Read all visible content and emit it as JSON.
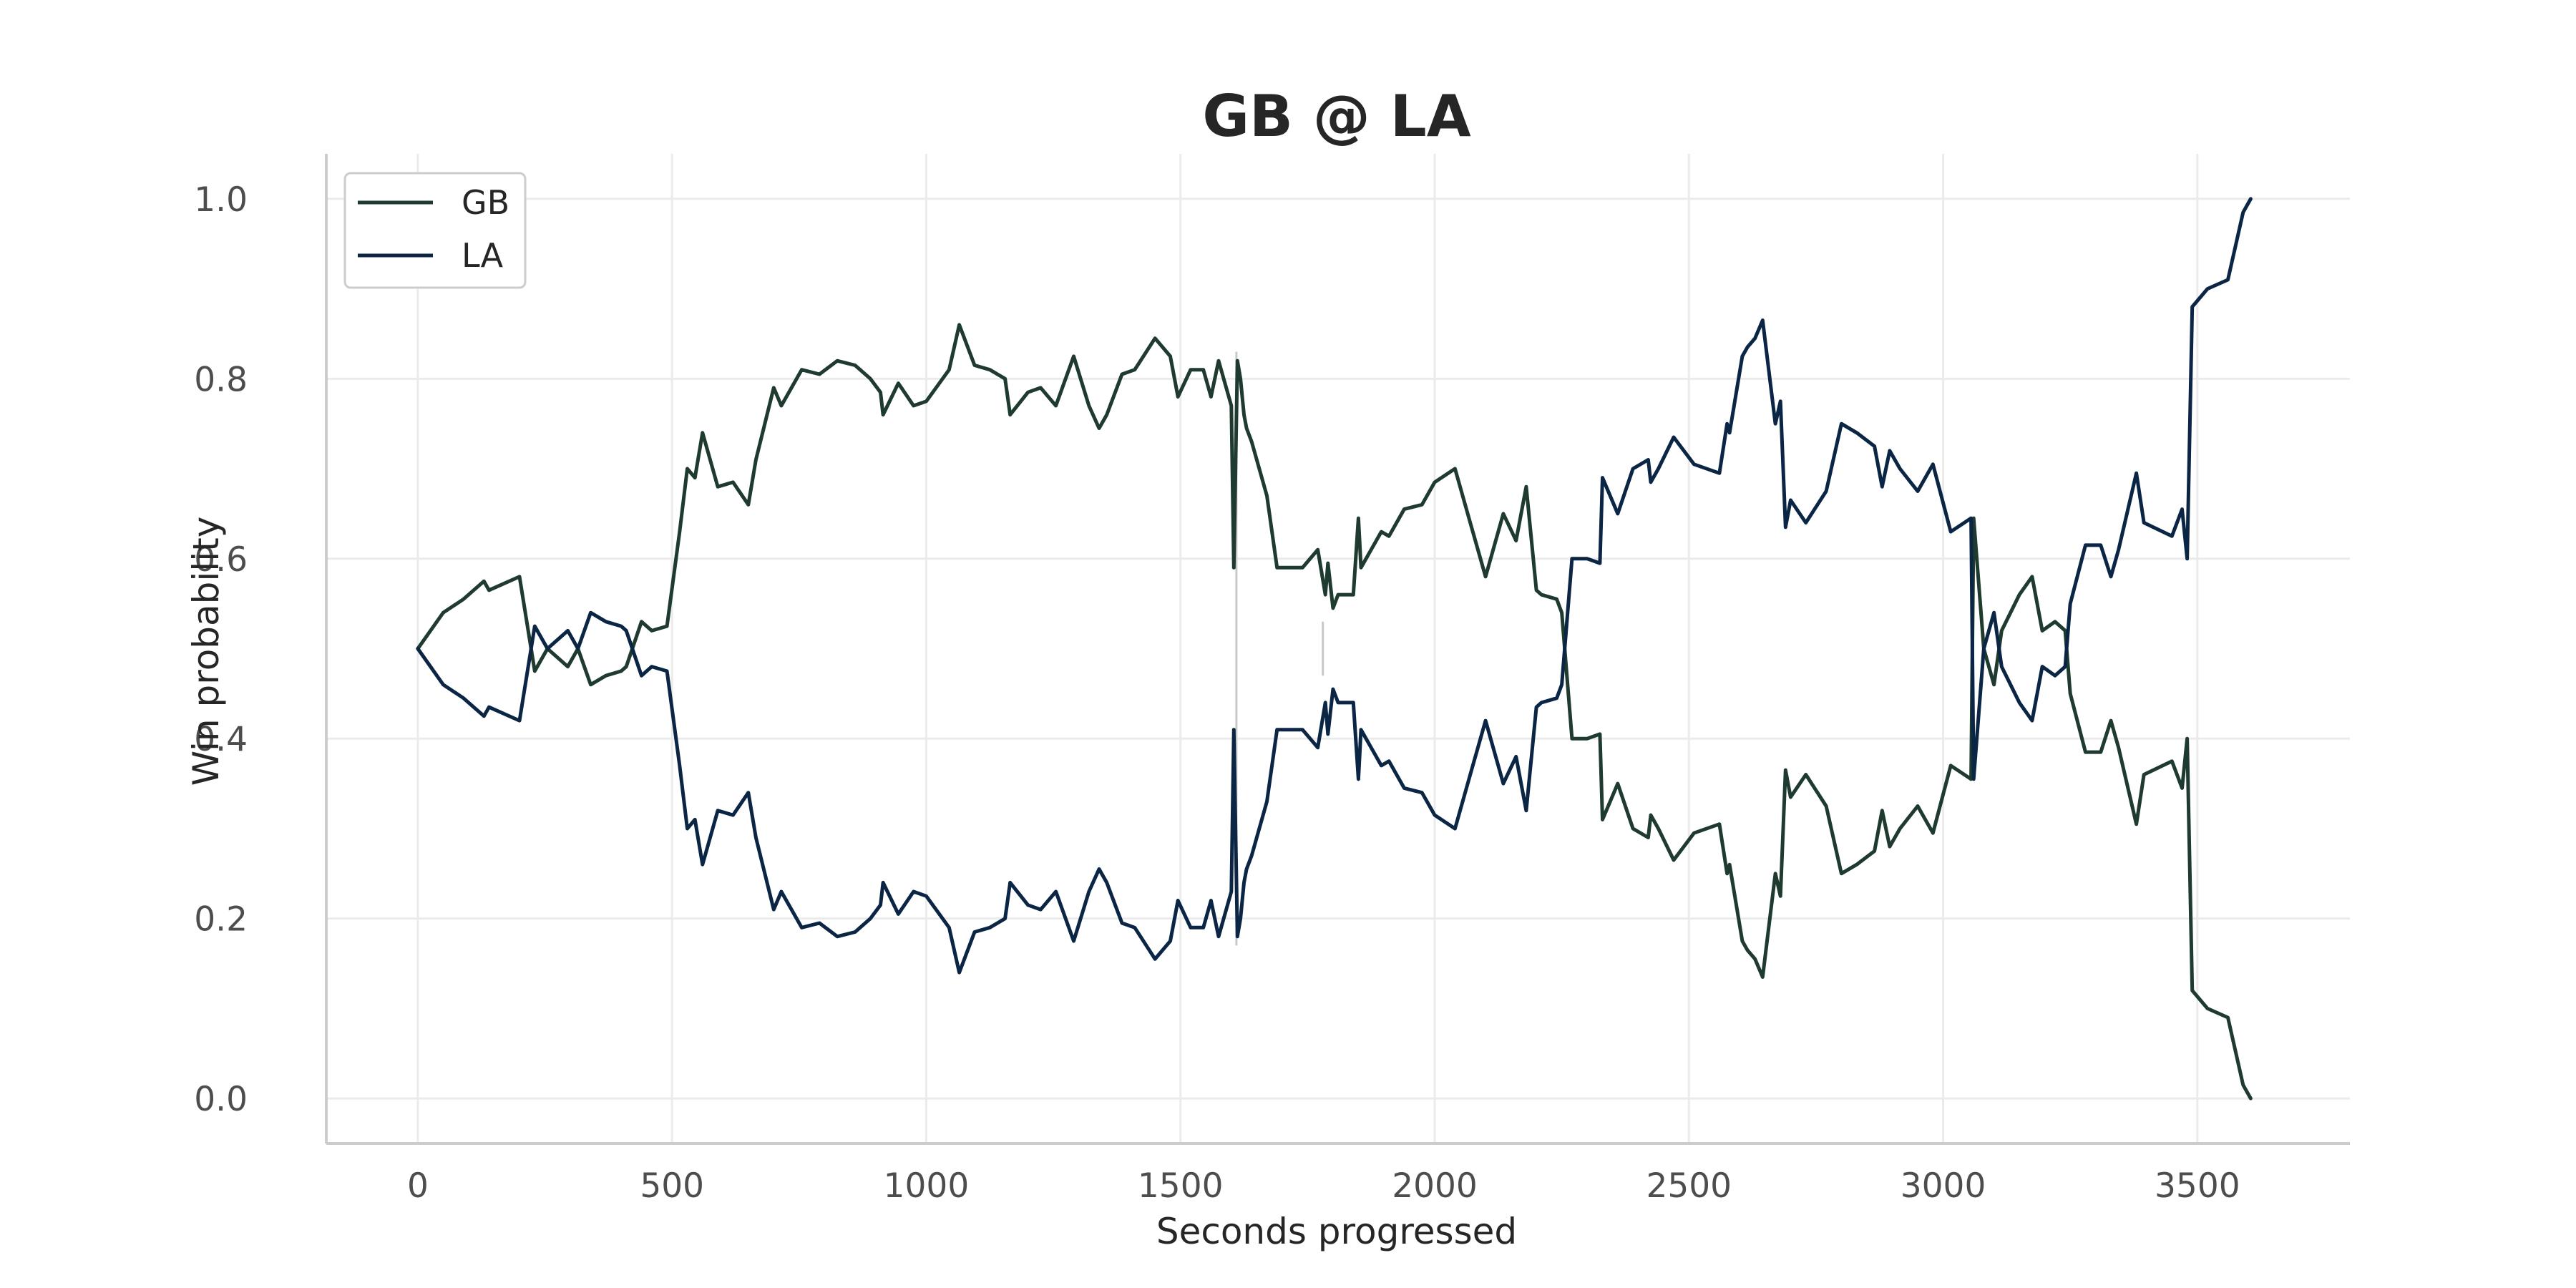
{
  "chart_data": {
    "type": "line",
    "title": "GB @ LA",
    "xlabel": "Seconds progressed",
    "ylabel": "Win probability",
    "xlim": [
      -180,
      3800
    ],
    "ylim": [
      -0.05,
      1.05
    ],
    "xticks": [
      0,
      500,
      1000,
      1500,
      2000,
      2500,
      3000,
      3500
    ],
    "yticks": [
      0.0,
      0.2,
      0.4,
      0.6,
      0.8,
      1.0
    ],
    "grid": true,
    "legend_position": "top-left",
    "vlines": [
      {
        "x": 1610,
        "y": [
          0.17,
          0.83
        ]
      },
      {
        "x": 1780,
        "y": [
          0.53,
          0.47
        ]
      }
    ],
    "series": [
      {
        "name": "GB",
        "color": "#1f3a2e",
        "x": [
          0,
          50,
          90,
          130,
          140,
          200,
          230,
          255,
          295,
          315,
          340,
          370,
          400,
          410,
          440,
          460,
          490,
          515,
          530,
          545,
          560,
          590,
          620,
          650,
          665,
          700,
          715,
          755,
          790,
          825,
          860,
          890,
          910,
          915,
          945,
          975,
          1000,
          1045,
          1065,
          1095,
          1125,
          1155,
          1165,
          1200,
          1225,
          1255,
          1290,
          1320,
          1340,
          1355,
          1385,
          1410,
          1450,
          1480,
          1495,
          1520,
          1545,
          1560,
          1575,
          1600,
          1605,
          1612,
          1618,
          1625,
          1630,
          1640,
          1670,
          1690,
          1740,
          1770,
          1785,
          1790,
          1800,
          1810,
          1840,
          1850,
          1855,
          1875,
          1895,
          1910,
          1940,
          1975,
          2000,
          2040,
          2070,
          2100,
          2135,
          2160,
          2180,
          2200,
          2210,
          2240,
          2250,
          2270,
          2300,
          2325,
          2330,
          2360,
          2390,
          2420,
          2425,
          2440,
          2470,
          2510,
          2560,
          2575,
          2580,
          2605,
          2615,
          2630,
          2645,
          2670,
          2680,
          2690,
          2700,
          2730,
          2770,
          2800,
          2830,
          2865,
          2880,
          2895,
          2915,
          2950,
          2980,
          3015,
          3055,
          3060,
          3080,
          3100,
          3115,
          3150,
          3175,
          3195,
          3220,
          3240,
          3250,
          3280,
          3310,
          3330,
          3345,
          3380,
          3395,
          3450,
          3470,
          3480,
          3490,
          3520,
          3560,
          3590,
          3605
        ],
        "y": [
          0.5,
          0.54,
          0.555,
          0.575,
          0.565,
          0.58,
          0.475,
          0.5,
          0.48,
          0.5,
          0.46,
          0.47,
          0.475,
          0.48,
          0.53,
          0.52,
          0.525,
          0.63,
          0.7,
          0.69,
          0.74,
          0.68,
          0.685,
          0.66,
          0.71,
          0.79,
          0.77,
          0.81,
          0.805,
          0.82,
          0.815,
          0.8,
          0.785,
          0.76,
          0.795,
          0.77,
          0.775,
          0.81,
          0.86,
          0.815,
          0.81,
          0.8,
          0.76,
          0.785,
          0.79,
          0.77,
          0.825,
          0.77,
          0.745,
          0.76,
          0.805,
          0.81,
          0.845,
          0.825,
          0.78,
          0.81,
          0.81,
          0.78,
          0.82,
          0.77,
          0.59,
          0.82,
          0.8,
          0.76,
          0.745,
          0.73,
          0.67,
          0.59,
          0.59,
          0.61,
          0.56,
          0.595,
          0.545,
          0.56,
          0.56,
          0.645,
          0.59,
          0.61,
          0.63,
          0.625,
          0.655,
          0.66,
          0.685,
          0.7,
          0.64,
          0.58,
          0.65,
          0.62,
          0.68,
          0.565,
          0.56,
          0.555,
          0.54,
          0.4,
          0.4,
          0.405,
          0.31,
          0.35,
          0.3,
          0.29,
          0.315,
          0.3,
          0.265,
          0.295,
          0.305,
          0.25,
          0.26,
          0.175,
          0.165,
          0.155,
          0.135,
          0.25,
          0.225,
          0.365,
          0.335,
          0.36,
          0.325,
          0.25,
          0.26,
          0.275,
          0.32,
          0.28,
          0.3,
          0.325,
          0.295,
          0.37,
          0.355,
          0.645,
          0.5,
          0.46,
          0.52,
          0.56,
          0.58,
          0.52,
          0.53,
          0.52,
          0.45,
          0.385,
          0.385,
          0.42,
          0.39,
          0.305,
          0.36,
          0.375,
          0.345,
          0.4,
          0.12,
          0.1,
          0.09,
          0.015,
          0.0
        ]
      },
      {
        "name": "LA",
        "color": "#0b2545",
        "x": [
          0,
          50,
          90,
          130,
          140,
          200,
          230,
          255,
          295,
          315,
          340,
          370,
          400,
          410,
          440,
          460,
          490,
          515,
          530,
          545,
          560,
          590,
          620,
          650,
          665,
          700,
          715,
          755,
          790,
          825,
          860,
          890,
          910,
          915,
          945,
          975,
          1000,
          1045,
          1065,
          1095,
          1125,
          1155,
          1165,
          1200,
          1225,
          1255,
          1290,
          1320,
          1340,
          1355,
          1385,
          1410,
          1450,
          1480,
          1495,
          1520,
          1545,
          1560,
          1575,
          1600,
          1605,
          1612,
          1618,
          1625,
          1630,
          1640,
          1670,
          1690,
          1740,
          1770,
          1785,
          1790,
          1800,
          1810,
          1840,
          1850,
          1855,
          1875,
          1895,
          1910,
          1940,
          1975,
          2000,
          2040,
          2070,
          2100,
          2135,
          2160,
          2180,
          2200,
          2210,
          2240,
          2250,
          2270,
          2300,
          2325,
          2330,
          2360,
          2390,
          2420,
          2425,
          2440,
          2470,
          2510,
          2560,
          2575,
          2580,
          2605,
          2615,
          2630,
          2645,
          2670,
          2680,
          2690,
          2700,
          2730,
          2770,
          2800,
          2830,
          2865,
          2880,
          2895,
          2915,
          2950,
          2980,
          3015,
          3055,
          3060,
          3080,
          3100,
          3115,
          3150,
          3175,
          3195,
          3220,
          3240,
          3250,
          3280,
          3310,
          3330,
          3345,
          3380,
          3395,
          3450,
          3470,
          3480,
          3490,
          3520,
          3560,
          3590,
          3605
        ],
        "y": [
          0.5,
          0.46,
          0.445,
          0.425,
          0.435,
          0.42,
          0.525,
          0.5,
          0.52,
          0.5,
          0.54,
          0.53,
          0.525,
          0.52,
          0.47,
          0.48,
          0.475,
          0.37,
          0.3,
          0.31,
          0.26,
          0.32,
          0.315,
          0.34,
          0.29,
          0.21,
          0.23,
          0.19,
          0.195,
          0.18,
          0.185,
          0.2,
          0.215,
          0.24,
          0.205,
          0.23,
          0.225,
          0.19,
          0.14,
          0.185,
          0.19,
          0.2,
          0.24,
          0.215,
          0.21,
          0.23,
          0.175,
          0.23,
          0.255,
          0.24,
          0.195,
          0.19,
          0.155,
          0.175,
          0.22,
          0.19,
          0.19,
          0.22,
          0.18,
          0.23,
          0.41,
          0.18,
          0.2,
          0.24,
          0.255,
          0.27,
          0.33,
          0.41,
          0.41,
          0.39,
          0.44,
          0.405,
          0.455,
          0.44,
          0.44,
          0.355,
          0.41,
          0.39,
          0.37,
          0.375,
          0.345,
          0.34,
          0.315,
          0.3,
          0.36,
          0.42,
          0.35,
          0.38,
          0.32,
          0.435,
          0.44,
          0.445,
          0.46,
          0.6,
          0.6,
          0.595,
          0.69,
          0.65,
          0.7,
          0.71,
          0.685,
          0.7,
          0.735,
          0.705,
          0.695,
          0.75,
          0.74,
          0.825,
          0.835,
          0.845,
          0.865,
          0.75,
          0.775,
          0.635,
          0.665,
          0.64,
          0.675,
          0.75,
          0.74,
          0.725,
          0.68,
          0.72,
          0.7,
          0.675,
          0.705,
          0.63,
          0.645,
          0.355,
          0.5,
          0.54,
          0.48,
          0.44,
          0.42,
          0.48,
          0.47,
          0.48,
          0.55,
          0.615,
          0.615,
          0.58,
          0.61,
          0.695,
          0.64,
          0.625,
          0.655,
          0.6,
          0.88,
          0.9,
          0.91,
          0.985,
          1.0
        ]
      }
    ]
  }
}
